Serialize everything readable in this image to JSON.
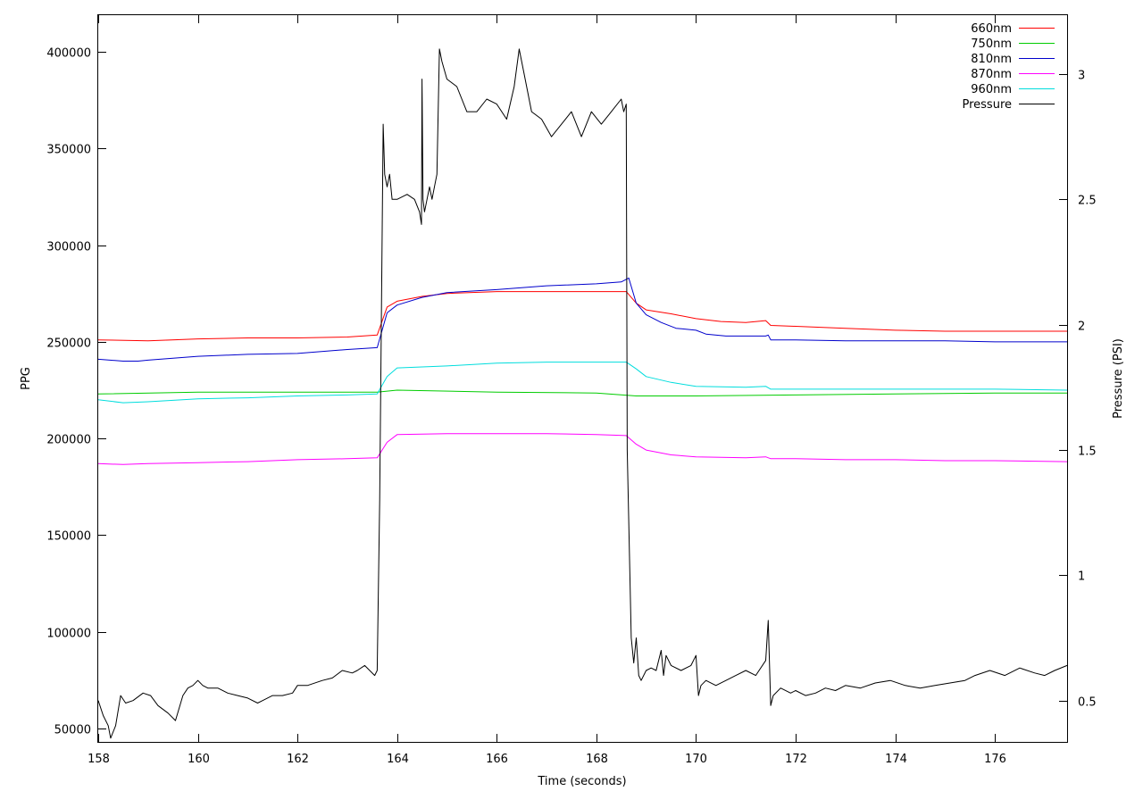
{
  "chart_data": {
    "type": "line",
    "title": "",
    "xlabel": "Time (seconds)",
    "ylabel": "PPG",
    "y2label": "Pressure (PSI)",
    "xlim": [
      158,
      177.45
    ],
    "ylim": [
      43000,
      419000
    ],
    "y2lim": [
      0.335,
      3.235
    ],
    "x_ticks": [
      158,
      160,
      162,
      164,
      166,
      168,
      170,
      172,
      174,
      176
    ],
    "x_tick_labels": [
      "158",
      "160",
      "162",
      "164",
      "166",
      "168",
      "170",
      "172",
      "174",
      "176"
    ],
    "y_ticks": [
      50000,
      100000,
      150000,
      200000,
      250000,
      300000,
      350000,
      400000
    ],
    "y_tick_labels": [
      "50000",
      "100000",
      "150000",
      "200000",
      "250000",
      "300000",
      "350000",
      "400000"
    ],
    "y2_ticks": [
      0.5,
      1,
      1.5,
      2,
      2.5,
      3
    ],
    "y2_tick_labels": [
      "0.5",
      "1",
      "1.5",
      "2",
      "2.5",
      "3"
    ],
    "grid": false,
    "legend_position": "top-right",
    "series": [
      {
        "name": "660nm",
        "color": "#ff0000",
        "axis": "left",
        "x": [
          158,
          159,
          160,
          161,
          162,
          163,
          163.6,
          163.8,
          164,
          164.5,
          165,
          166,
          167,
          168,
          168.6,
          168.8,
          169,
          169.5,
          170,
          170.5,
          171,
          171.4,
          171.5,
          172,
          173,
          174,
          175,
          176,
          177.45
        ],
        "y": [
          251000,
          250500,
          251500,
          252000,
          252000,
          252500,
          253500,
          268000,
          271000,
          273500,
          275000,
          276000,
          276000,
          276000,
          276000,
          270000,
          266500,
          264500,
          262000,
          260500,
          260000,
          261000,
          258500,
          258000,
          257000,
          256000,
          255500,
          255500,
          255500
        ]
      },
      {
        "name": "750nm",
        "color": "#00cc00",
        "axis": "left",
        "x": [
          158,
          160,
          162,
          163.6,
          164,
          166,
          168,
          168.8,
          170,
          172,
          174,
          176,
          177.45
        ],
        "y": [
          223000,
          224000,
          224000,
          224000,
          225000,
          224000,
          223500,
          222000,
          222000,
          222500,
          223000,
          223500,
          223500
        ]
      },
      {
        "name": "810nm",
        "color": "#0000cc",
        "axis": "left",
        "x": [
          158,
          158.5,
          158.8,
          159,
          160,
          161,
          162,
          163,
          163.6,
          163.8,
          164,
          164.5,
          165,
          166,
          167,
          168,
          168.5,
          168.65,
          168.8,
          169,
          169.3,
          169.6,
          170,
          170.2,
          170.6,
          171,
          171.4,
          171.45,
          171.5,
          172,
          173,
          174,
          175,
          176,
          177.45
        ],
        "y": [
          241000,
          240000,
          240000,
          240500,
          242500,
          243500,
          244000,
          246000,
          247000,
          265000,
          269000,
          273000,
          275500,
          277000,
          279000,
          280000,
          281000,
          283000,
          270000,
          264000,
          260000,
          257000,
          256000,
          254000,
          253000,
          253000,
          253000,
          253500,
          251000,
          251000,
          250500,
          250500,
          250500,
          250000,
          250000
        ]
      },
      {
        "name": "870nm",
        "color": "#ff00ff",
        "axis": "left",
        "x": [
          158,
          158.5,
          159,
          160,
          161,
          162,
          163,
          163.6,
          163.8,
          164,
          165,
          166,
          167,
          168,
          168.6,
          168.8,
          169,
          169.5,
          170,
          171,
          171.4,
          171.5,
          172,
          173,
          174,
          175,
          176,
          177.45
        ],
        "y": [
          187000,
          186500,
          187000,
          187500,
          188000,
          189000,
          189500,
          190000,
          198000,
          202000,
          202500,
          202500,
          202500,
          202000,
          201500,
          197000,
          194000,
          191500,
          190500,
          190000,
          190500,
          189500,
          189500,
          189000,
          189000,
          188500,
          188500,
          188000
        ]
      },
      {
        "name": "960nm",
        "color": "#00dddd",
        "axis": "left",
        "x": [
          158,
          158.5,
          159,
          160,
          161,
          162,
          163,
          163.6,
          163.8,
          164,
          165,
          166,
          167,
          168,
          168.6,
          168.8,
          169,
          169.5,
          170,
          171,
          171.4,
          171.5,
          172,
          173,
          174,
          175,
          176,
          177.45
        ],
        "y": [
          220000,
          218500,
          219000,
          220500,
          221000,
          222000,
          222500,
          223000,
          232000,
          236500,
          237500,
          239000,
          239500,
          239500,
          239500,
          236000,
          232000,
          229000,
          227000,
          226500,
          227000,
          225500,
          225500,
          225500,
          225500,
          225500,
          225500,
          225000
        ]
      },
      {
        "name": "Pressure",
        "color": "#000000",
        "axis": "right",
        "x": [
          158,
          158.1,
          158.2,
          158.25,
          158.35,
          158.45,
          158.55,
          158.7,
          158.9,
          159.05,
          159.2,
          159.4,
          159.55,
          159.7,
          159.8,
          159.9,
          160,
          160.1,
          160.2,
          160.4,
          160.6,
          160.8,
          161,
          161.2,
          161.3,
          161.5,
          161.7,
          161.9,
          162,
          162.2,
          162.5,
          162.7,
          162.9,
          163.1,
          163.2,
          163.35,
          163.45,
          163.55,
          163.6,
          163.65,
          163.72,
          163.75,
          163.8,
          163.85,
          163.9,
          164,
          164.2,
          164.35,
          164.45,
          164.49,
          164.5,
          164.52,
          164.55,
          164.6,
          164.65,
          164.7,
          164.75,
          164.8,
          164.85,
          164.9,
          165,
          165.2,
          165.4,
          165.6,
          165.8,
          166,
          166.2,
          166.35,
          166.45,
          166.55,
          166.7,
          166.9,
          167.1,
          167.3,
          167.5,
          167.7,
          167.9,
          168.1,
          168.3,
          168.5,
          168.55,
          168.6,
          168.62,
          168.7,
          168.75,
          168.8,
          168.85,
          168.9,
          169,
          169.1,
          169.2,
          169.3,
          169.35,
          169.4,
          169.5,
          169.7,
          169.9,
          170,
          170.05,
          170.1,
          170.2,
          170.4,
          170.6,
          170.8,
          171,
          171.2,
          171.4,
          171.45,
          171.5,
          171.55,
          171.7,
          171.9,
          172,
          172.2,
          172.4,
          172.6,
          172.8,
          173,
          173.3,
          173.6,
          173.9,
          174.2,
          174.5,
          174.8,
          175.1,
          175.4,
          175.6,
          175.9,
          176.2,
          176.5,
          176.8,
          177,
          177.2,
          177.45
        ],
        "y": [
          0.5,
          0.44,
          0.4,
          0.35,
          0.4,
          0.52,
          0.49,
          0.5,
          0.53,
          0.52,
          0.48,
          0.45,
          0.42,
          0.52,
          0.55,
          0.56,
          0.58,
          0.56,
          0.55,
          0.55,
          0.53,
          0.52,
          0.51,
          0.49,
          0.5,
          0.52,
          0.52,
          0.53,
          0.56,
          0.56,
          0.58,
          0.59,
          0.62,
          0.61,
          0.62,
          0.64,
          0.62,
          0.6,
          0.62,
          1.3,
          2.8,
          2.6,
          2.55,
          2.6,
          2.5,
          2.5,
          2.52,
          2.5,
          2.45,
          2.4,
          2.98,
          2.5,
          2.45,
          2.5,
          2.55,
          2.5,
          2.55,
          2.6,
          3.1,
          3.05,
          2.98,
          2.95,
          2.85,
          2.85,
          2.9,
          2.88,
          2.82,
          2.95,
          3.1,
          3.0,
          2.85,
          2.82,
          2.75,
          2.8,
          2.85,
          2.75,
          2.85,
          2.8,
          2.85,
          2.9,
          2.85,
          2.88,
          1.5,
          0.75,
          0.65,
          0.75,
          0.6,
          0.58,
          0.62,
          0.63,
          0.62,
          0.7,
          0.6,
          0.68,
          0.64,
          0.62,
          0.64,
          0.68,
          0.52,
          0.56,
          0.58,
          0.56,
          0.58,
          0.6,
          0.62,
          0.6,
          0.66,
          0.82,
          0.48,
          0.52,
          0.55,
          0.53,
          0.54,
          0.52,
          0.53,
          0.55,
          0.54,
          0.56,
          0.55,
          0.57,
          0.58,
          0.56,
          0.55,
          0.56,
          0.57,
          0.58,
          0.6,
          0.62,
          0.6,
          0.63,
          0.61,
          0.6,
          0.62,
          0.64
        ]
      }
    ]
  }
}
